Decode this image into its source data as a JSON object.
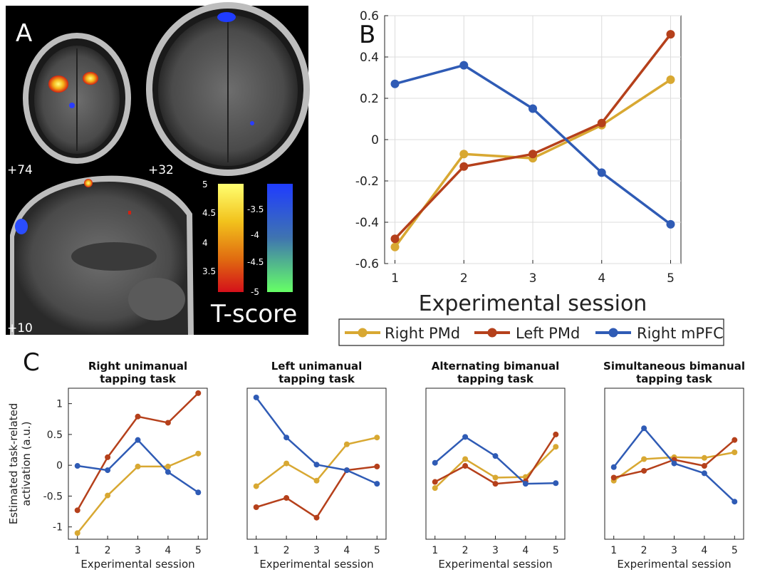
{
  "panel_labels": {
    "a": "A",
    "b": "B",
    "c": "C"
  },
  "colors": {
    "right_pmd": "#D8A832",
    "left_pmd": "#B5401B",
    "right_mpfc": "#2F5BB5"
  },
  "brain": {
    "slice_labels": [
      "+74",
      "+32",
      "+10"
    ],
    "colorbar_title": "T-score",
    "warm_ticks": [
      "5",
      "4.5",
      "4",
      "3.5"
    ],
    "cool_ticks": [
      "-3.5",
      "-4",
      "-4.5",
      "-5"
    ]
  },
  "legend": [
    "Right PMd",
    "Left PMd",
    "Right mPFC"
  ],
  "chart_data": [
    {
      "type": "line",
      "panel": "B",
      "title": "",
      "xlabel": "Experimental session",
      "ylabel": "",
      "x": [
        1,
        2,
        3,
        4,
        5
      ],
      "xlim": [
        0.85,
        5.15
      ],
      "ylim": [
        -0.6,
        0.6
      ],
      "yticks": [
        -0.6,
        -0.4,
        -0.2,
        0,
        0.2,
        0.4,
        0.6
      ],
      "ytick_labels": [
        "-0.6",
        "-0.4",
        "-0.2",
        "0",
        "0.2",
        "0.4",
        "0.6"
      ],
      "grid": true,
      "series": [
        {
          "name": "Right PMd",
          "color": "#D8A832",
          "values": [
            -0.52,
            -0.07,
            -0.09,
            0.07,
            0.29
          ]
        },
        {
          "name": "Left PMd",
          "color": "#B5401B",
          "values": [
            -0.48,
            -0.13,
            -0.07,
            0.08,
            0.51
          ]
        },
        {
          "name": "Right mPFC",
          "color": "#2F5BB5",
          "values": [
            0.27,
            0.36,
            0.15,
            -0.16,
            -0.41
          ]
        }
      ]
    },
    {
      "type": "line",
      "panel": "C",
      "title": "Right unimanual tapping task",
      "title_lines": [
        "Right unimanual",
        "tapping task"
      ],
      "xlabel": "Experimental session",
      "ylabel": "Estimated task-related activation (a.u.)",
      "ylabel_lines": [
        "Estimated task-related",
        "activation (a.u.)"
      ],
      "x": [
        1,
        2,
        3,
        4,
        5
      ],
      "xlim": [
        0.7,
        5.3
      ],
      "ylim": [
        -1.2,
        1.25
      ],
      "yticks": [
        -1,
        -0.5,
        0,
        0.5,
        1
      ],
      "ytick_labels": [
        "-1",
        "-0.5",
        "0",
        "0.5",
        "1"
      ],
      "grid": false,
      "series": [
        {
          "name": "Right PMd",
          "color": "#D8A832",
          "values": [
            -1.1,
            -0.49,
            -0.02,
            -0.02,
            0.19
          ]
        },
        {
          "name": "Left PMd",
          "color": "#B5401B",
          "values": [
            -0.73,
            0.13,
            0.79,
            0.69,
            1.17
          ]
        },
        {
          "name": "Right mPFC",
          "color": "#2F5BB5",
          "values": [
            -0.01,
            -0.08,
            0.41,
            -0.11,
            -0.44
          ]
        }
      ]
    },
    {
      "type": "line",
      "panel": "C",
      "title": "Left unimanual tapping task",
      "title_lines": [
        "Left unimanual",
        "tapping task"
      ],
      "xlabel": "Experimental session",
      "x": [
        1,
        2,
        3,
        4,
        5
      ],
      "xlim": [
        0.7,
        5.3
      ],
      "ylim": [
        -1.2,
        1.25
      ],
      "grid": false,
      "series": [
        {
          "name": "Right PMd",
          "color": "#D8A832",
          "values": [
            -0.34,
            0.03,
            -0.25,
            0.34,
            0.45
          ]
        },
        {
          "name": "Left PMd",
          "color": "#B5401B",
          "values": [
            -0.68,
            -0.53,
            -0.85,
            -0.08,
            -0.02
          ]
        },
        {
          "name": "Right mPFC",
          "color": "#2F5BB5",
          "values": [
            1.1,
            0.45,
            0.01,
            -0.08,
            -0.3
          ]
        }
      ]
    },
    {
      "type": "line",
      "panel": "C",
      "title": "Alternating bimanual tapping task",
      "title_lines": [
        "Alternating bimanual",
        "tapping task"
      ],
      "xlabel": "Experimental session",
      "x": [
        1,
        2,
        3,
        4,
        5
      ],
      "xlim": [
        0.7,
        5.3
      ],
      "ylim": [
        -1.2,
        1.25
      ],
      "grid": false,
      "series": [
        {
          "name": "Right PMd",
          "color": "#D8A832",
          "values": [
            -0.37,
            0.1,
            -0.2,
            -0.19,
            0.3
          ]
        },
        {
          "name": "Left PMd",
          "color": "#B5401B",
          "values": [
            -0.27,
            -0.01,
            -0.3,
            -0.26,
            0.5
          ]
        },
        {
          "name": "Right mPFC",
          "color": "#2F5BB5",
          "values": [
            0.04,
            0.46,
            0.15,
            -0.3,
            -0.29
          ]
        }
      ]
    },
    {
      "type": "line",
      "panel": "C",
      "title": "Simultaneous bimanual tapping task",
      "title_lines": [
        "Simultaneous bimanual",
        "tapping task"
      ],
      "xlabel": "Experimental session",
      "x": [
        1,
        2,
        3,
        4,
        5
      ],
      "xlim": [
        0.7,
        5.3
      ],
      "ylim": [
        -1.2,
        1.25
      ],
      "grid": false,
      "series": [
        {
          "name": "Right PMd",
          "color": "#D8A832",
          "values": [
            -0.25,
            0.1,
            0.13,
            0.12,
            0.21
          ]
        },
        {
          "name": "Left PMd",
          "color": "#B5401B",
          "values": [
            -0.2,
            -0.09,
            0.09,
            -0.01,
            0.41
          ]
        },
        {
          "name": "Right mPFC",
          "color": "#2F5BB5",
          "values": [
            -0.03,
            0.6,
            0.03,
            -0.13,
            -0.59
          ]
        }
      ]
    }
  ]
}
